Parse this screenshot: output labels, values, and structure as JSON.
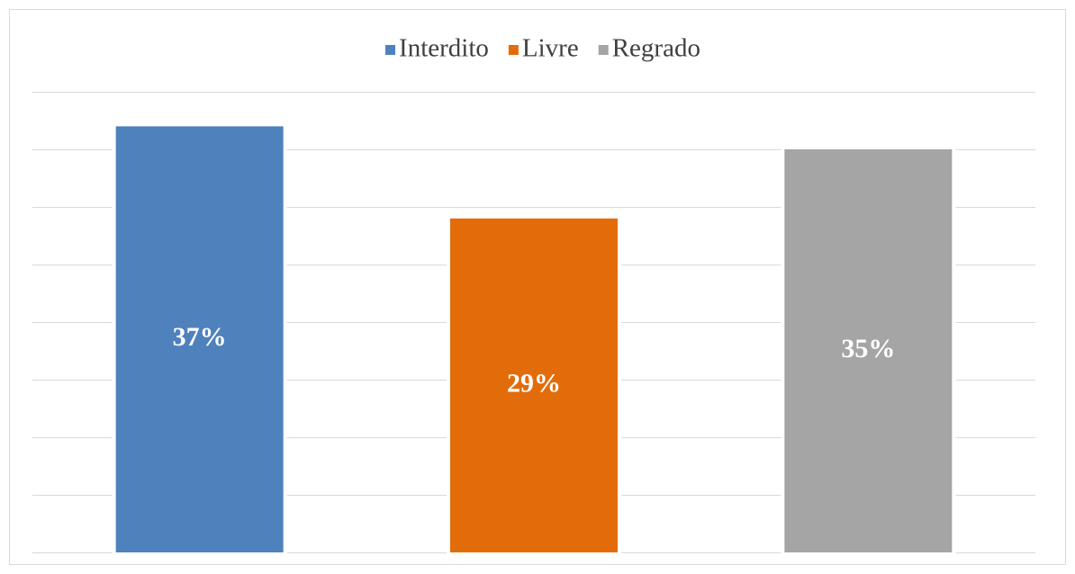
{
  "chart_data": {
    "type": "bar",
    "series": [
      {
        "name": "Interdito",
        "color": "#4f81bd",
        "values": [
          37
        ],
        "value_labels": [
          "37%"
        ]
      },
      {
        "name": "Livre",
        "color": "#e36c0a",
        "values": [
          29
        ],
        "value_labels": [
          "29%"
        ]
      },
      {
        "name": "Regrado",
        "color": "#a5a5a5",
        "values": [
          35
        ],
        "value_labels": [
          "35%"
        ]
      }
    ],
    "ylim": [
      0,
      40
    ],
    "yticks": [
      0,
      5,
      10,
      15,
      20,
      25,
      30,
      35,
      40
    ],
    "grid": true,
    "legend": "top"
  }
}
